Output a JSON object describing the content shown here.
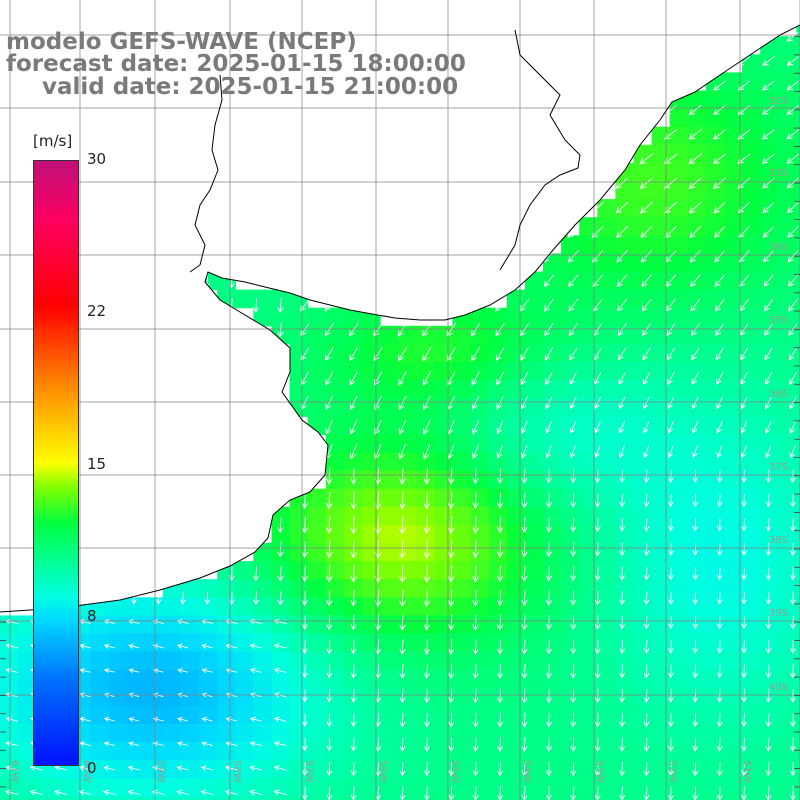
{
  "title": {
    "line1": "modelo GEFS-WAVE (NCEP)",
    "line2": "forecast date: 2025-01-15 18:00:00",
    "line3": "valid date: 2025-01-15 21:00:00"
  },
  "colorbar": {
    "unit": "[m/s]",
    "ticks": [
      "30",
      "22",
      "15",
      "8",
      "0"
    ],
    "min": 0,
    "max": 30
  },
  "grid": {
    "lon_labels": [
      "61W",
      "60W",
      "59W",
      "58W",
      "57W",
      "56W",
      "55W",
      "54W",
      "53W",
      "52W",
      "51W",
      "50W"
    ],
    "lat_labels": [
      "32S",
      "33S",
      "34S",
      "35S",
      "36S",
      "37S",
      "38S",
      "39S",
      "40S"
    ]
  },
  "colors": {
    "title": "#7a7a7a",
    "land": "#ffffff",
    "coastline": "#000000",
    "gridline": "#808080",
    "arrow": "#ffffff"
  }
}
